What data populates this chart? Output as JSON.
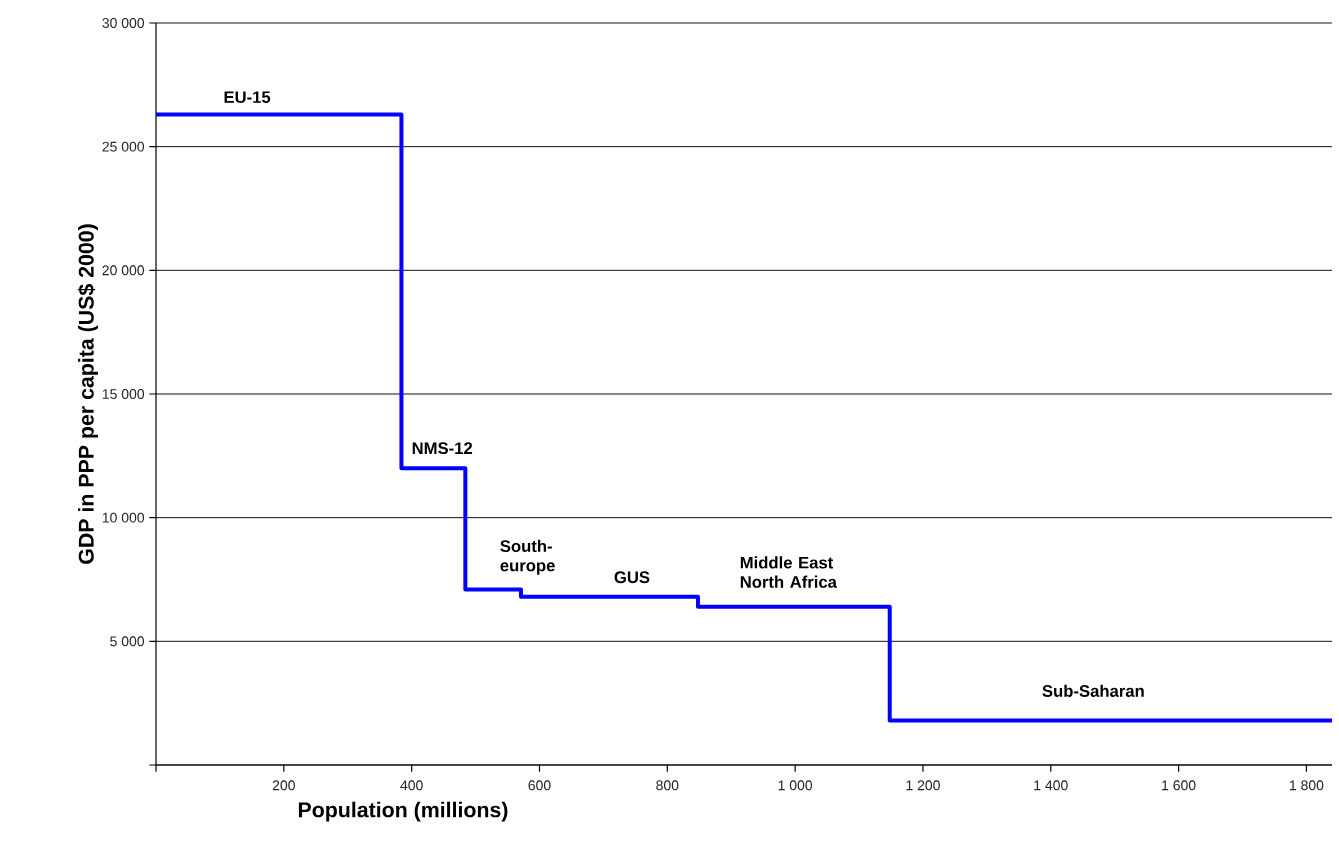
{
  "chart_data": {
    "type": "step",
    "xlabel": "Population (millions)",
    "ylabel": "GDP in PPP per capita (US$ 2000)",
    "x": [
      0,
      384,
      484,
      571,
      848,
      1148,
      1840
    ],
    "values": [
      26300,
      12000,
      7100,
      6800,
      6400,
      1800,
      1800
    ],
    "color": "#0000ff",
    "xlim": [
      0,
      1840
    ],
    "ylim": [
      0,
      30000
    ],
    "xticks": [
      {
        "value": 0,
        "label": null
      },
      {
        "value": 200,
        "label": "200"
      },
      {
        "value": 400,
        "label": "400"
      },
      {
        "value": 600,
        "label": "600"
      },
      {
        "value": 800,
        "label": "800"
      },
      {
        "value": 1000,
        "label": "1 000"
      },
      {
        "value": 1200,
        "label": "1 200"
      },
      {
        "value": 1400,
        "label": "1 400"
      },
      {
        "value": 1600,
        "label": "1 600"
      },
      {
        "value": 1800,
        "label": "1 800"
      }
    ],
    "yticks": [
      {
        "value": 0,
        "label": null
      },
      {
        "value": 5000,
        "label": "5 000"
      },
      {
        "value": 10000,
        "label": "10 000"
      },
      {
        "value": 15000,
        "label": "15 000"
      },
      {
        "value": 20000,
        "label": "20 000"
      },
      {
        "value": 25000,
        "label": "25 000"
      },
      {
        "value": 30000,
        "label": "30 000"
      }
    ],
    "grid": "y",
    "annotations": [
      "EU-15",
      "NMS-12",
      "South-europe",
      "GUS",
      "Middle East North Africa",
      "Sub-Saharan"
    ]
  }
}
